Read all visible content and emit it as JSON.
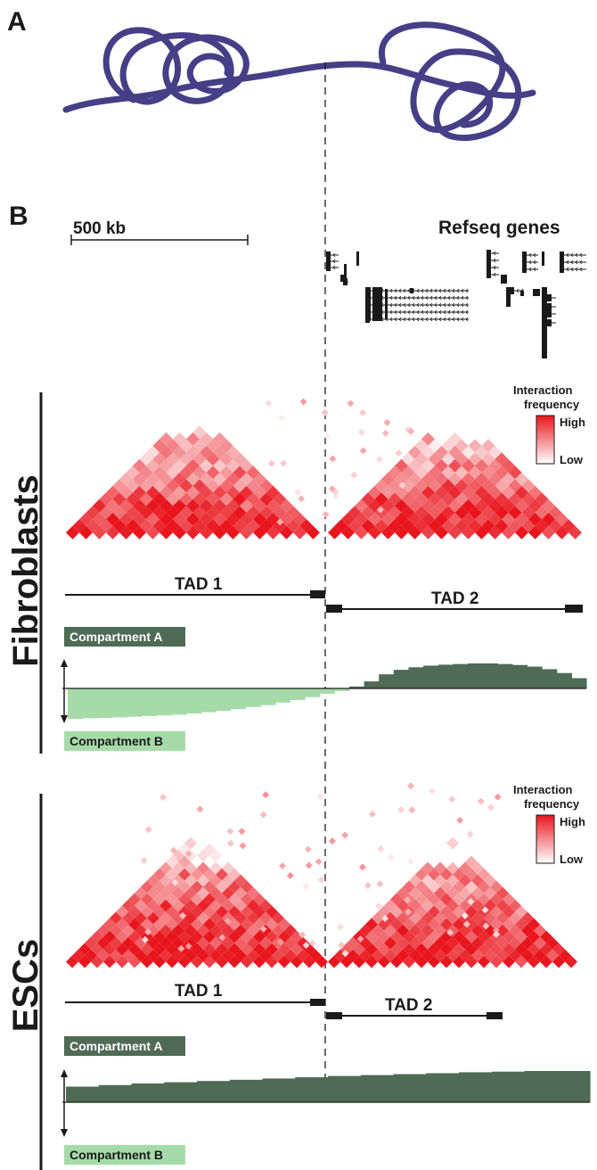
{
  "panels": {
    "a_label": "A",
    "b_label": "B"
  },
  "scale_bar": {
    "label": "500 kb"
  },
  "genes": {
    "title": "Refseq genes"
  },
  "legend": {
    "title_line1": "Interaction",
    "title_line2": "frequency",
    "high": "High",
    "low": "Low"
  },
  "colors": {
    "chromatin": "#443f86",
    "heat_high": "#e8151d",
    "heat_low": "#ffffff",
    "compartment_a": "#4f6a55",
    "compartment_b": "#a6dba9",
    "text": "#1a1a1a"
  },
  "cell_types": [
    {
      "name": "Fibroblasts",
      "tad1_label": "TAD 1",
      "tad2_label": "TAD 2",
      "compartment_a_label": "Compartment A",
      "compartment_b_label": "Compartment B",
      "compartment_profile": [
        -0.95,
        -0.93,
        -0.92,
        -0.9,
        -0.88,
        -0.86,
        -0.84,
        -0.82,
        -0.78,
        -0.74,
        -0.7,
        -0.64,
        -0.58,
        -0.52,
        -0.44,
        -0.36,
        -0.27,
        -0.17,
        -0.08,
        0.06,
        0.22,
        0.44,
        0.58,
        0.66,
        0.71,
        0.74,
        0.76,
        0.78,
        0.78,
        0.76,
        0.73,
        0.68,
        0.6,
        0.48,
        0.32
      ]
    },
    {
      "name": "ESCs",
      "tad1_label": "TAD 1",
      "tad2_label": "TAD 2",
      "compartment_a_label": "Compartment A",
      "compartment_b_label": "Compartment B",
      "compartment_profile": [
        0.5,
        0.55,
        0.6,
        0.64,
        0.68,
        0.72,
        0.76,
        0.8,
        0.84,
        0.87,
        0.9,
        0.93,
        0.96,
        0.98,
        1.0,
        1.0
      ]
    }
  ]
}
